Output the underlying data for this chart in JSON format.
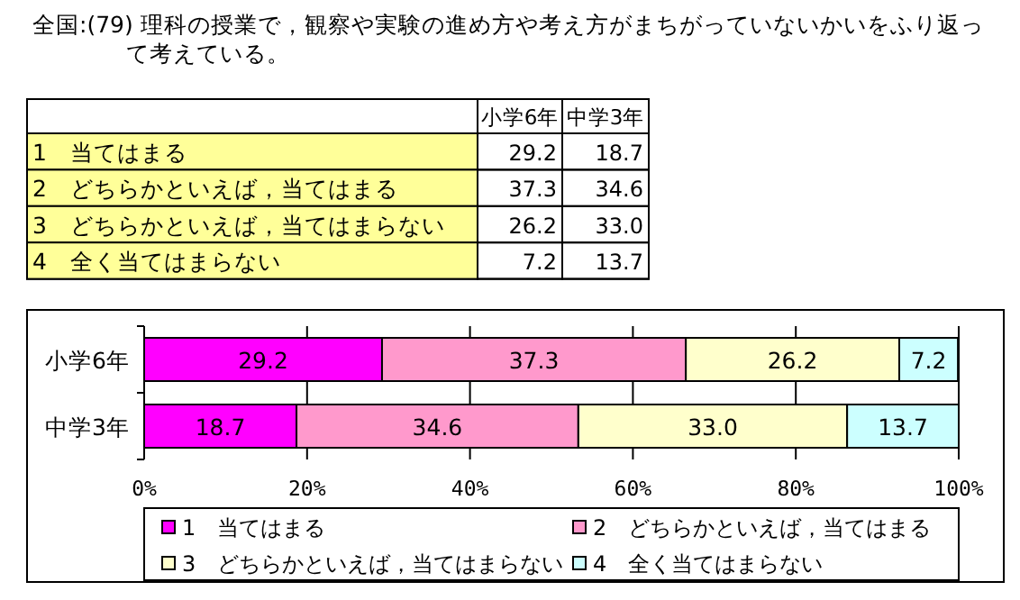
{
  "chart_data": {
    "type": "bar",
    "orientation": "horizontal",
    "stacked": true,
    "title": "全国:(79) 理科の授業で，観察や実験の進め方や考え方がまちがっていないかいをふり返って考えている。",
    "categories": [
      "小学6年",
      "中学3年"
    ],
    "series": [
      {
        "name": "1　当てはまる",
        "color": "#ff00ff",
        "values": [
          29.2,
          18.7
        ],
        "value_labels": [
          "29.2",
          "18.7"
        ]
      },
      {
        "name": "2　どちらかといえば，当てはまる",
        "color": "#ff99cc",
        "values": [
          37.3,
          34.6
        ],
        "value_labels": [
          "37.3",
          "34.6"
        ]
      },
      {
        "name": "3　どちらかといえば，当てはまらない",
        "color": "#ffffcc",
        "values": [
          26.2,
          33.0
        ],
        "value_labels": [
          "26.2",
          "33.0"
        ]
      },
      {
        "name": "4　全く当てはまらない",
        "color": "#ccffff",
        "values": [
          7.2,
          13.7
        ],
        "value_labels": [
          "7.2",
          "13.7"
        ]
      }
    ],
    "xlim": [
      0,
      100
    ],
    "xticks": [
      {
        "value": 0,
        "label": "0%"
      },
      {
        "value": 20,
        "label": "20%"
      },
      {
        "value": 40,
        "label": "40%"
      },
      {
        "value": 60,
        "label": "60%"
      },
      {
        "value": 80,
        "label": "80%"
      },
      {
        "value": 100,
        "label": "100%"
      }
    ],
    "grid": "x",
    "legend": "bottom"
  }
}
